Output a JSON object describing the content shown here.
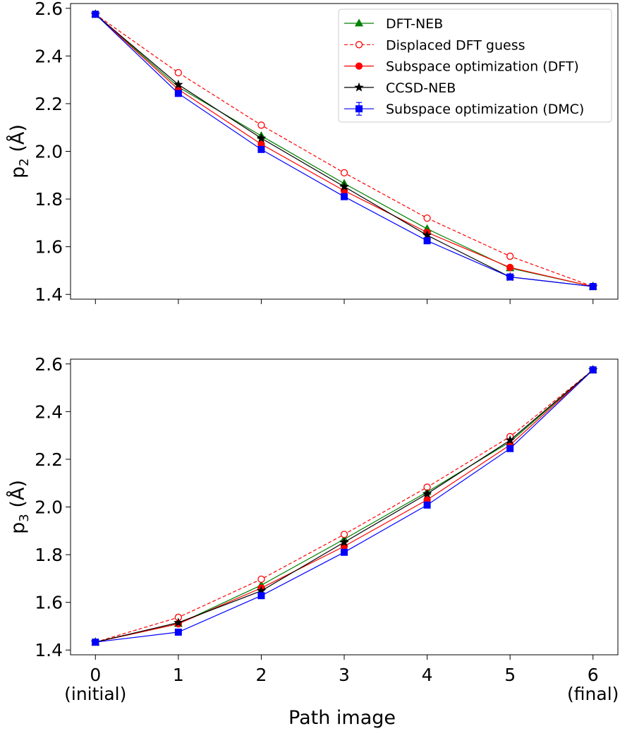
{
  "chart_data": {
    "type": "line",
    "shared_x": {
      "label": "Path image",
      "ticks": [
        0,
        1,
        2,
        3,
        4,
        5,
        6
      ],
      "tick_labels": [
        "0",
        "1",
        "2",
        "3",
        "4",
        "5",
        "6"
      ],
      "tick_sublabels": [
        "(initial)",
        "",
        "",
        "",
        "",
        "",
        "(final)"
      ],
      "xlim": [
        -0.3,
        6.3
      ]
    },
    "legend": {
      "placement": "top-right of upper panel",
      "entries": [
        "DFT-NEB",
        "Displaced DFT guess",
        "Subspace optimization (DFT)",
        "CCSD-NEB",
        "Subspace optimization (DMC)"
      ]
    },
    "panels": [
      {
        "ylabel": "p",
        "ylabel_sub": "2",
        "ylabel_unit": " (Å)",
        "ylim": [
          1.38,
          2.62
        ],
        "yticks": [
          1.4,
          1.6,
          1.8,
          2.0,
          2.2,
          2.4,
          2.6
        ],
        "ytick_labels": [
          "1.4",
          "1.6",
          "1.8",
          "2.0",
          "2.2",
          "2.4",
          "2.6"
        ],
        "series": [
          {
            "name": "DFT-NEB",
            "color": "#008000",
            "marker": "triangle",
            "dashed": false,
            "filled": true,
            "x": [
              0,
              1,
              2,
              3,
              4,
              5,
              6
            ],
            "y": [
              2.575,
              2.27,
              2.065,
              1.865,
              1.675,
              1.51,
              1.433
            ]
          },
          {
            "name": "Displaced DFT guess",
            "color": "#ff0000",
            "marker": "circle",
            "dashed": true,
            "filled": false,
            "x": [
              0,
              1,
              2,
              3,
              4,
              5,
              6
            ],
            "y": [
              2.575,
              2.33,
              2.11,
              1.91,
              1.72,
              1.56,
              1.433
            ]
          },
          {
            "name": "Subspace optimization (DFT)",
            "color": "#ff0000",
            "marker": "circle",
            "dashed": false,
            "filled": true,
            "x": [
              0,
              1,
              2,
              3,
              4,
              5,
              6
            ],
            "y": [
              2.575,
              2.26,
              2.03,
              1.835,
              1.66,
              1.513,
              1.433
            ]
          },
          {
            "name": "CCSD-NEB",
            "color": "#000000",
            "marker": "star",
            "dashed": false,
            "filled": true,
            "x": [
              0,
              1,
              2,
              3,
              4,
              5,
              6
            ],
            "y": [
              2.575,
              2.28,
              2.055,
              1.852,
              1.648,
              1.473,
              1.433
            ]
          },
          {
            "name": "Subspace optimization (DMC)",
            "color": "#0000ff",
            "marker": "square",
            "dashed": false,
            "filled": true,
            "errorbars": true,
            "x": [
              0,
              1,
              2,
              3,
              4,
              5,
              6
            ],
            "y": [
              2.575,
              2.243,
              2.008,
              1.81,
              1.625,
              1.473,
              1.433
            ]
          }
        ]
      },
      {
        "ylabel": "p",
        "ylabel_sub": "3",
        "ylabel_unit": " (Å)",
        "ylim": [
          1.38,
          2.62
        ],
        "yticks": [
          1.4,
          1.6,
          1.8,
          2.0,
          2.2,
          2.4,
          2.6
        ],
        "ytick_labels": [
          "1.4",
          "1.6",
          "1.8",
          "2.0",
          "2.2",
          "2.4",
          "2.6"
        ],
        "series": [
          {
            "name": "DFT-NEB",
            "color": "#008000",
            "marker": "triangle",
            "dashed": false,
            "filled": true,
            "x": [
              0,
              1,
              2,
              3,
              4,
              5,
              6
            ],
            "y": [
              1.433,
              1.51,
              1.672,
              1.865,
              2.063,
              2.273,
              2.575
            ]
          },
          {
            "name": "Displaced DFT guess",
            "color": "#ff0000",
            "marker": "circle",
            "dashed": true,
            "filled": false,
            "x": [
              0,
              1,
              2,
              3,
              4,
              5,
              6
            ],
            "y": [
              1.433,
              1.537,
              1.697,
              1.885,
              2.083,
              2.295,
              2.575
            ]
          },
          {
            "name": "Subspace optimization (DFT)",
            "color": "#ff0000",
            "marker": "circle",
            "dashed": false,
            "filled": true,
            "x": [
              0,
              1,
              2,
              3,
              4,
              5,
              6
            ],
            "y": [
              1.433,
              1.51,
              1.66,
              1.835,
              2.03,
              2.26,
              2.575
            ]
          },
          {
            "name": "CCSD-NEB",
            "color": "#000000",
            "marker": "star",
            "dashed": false,
            "filled": true,
            "x": [
              0,
              1,
              2,
              3,
              4,
              5,
              6
            ],
            "y": [
              1.433,
              1.515,
              1.648,
              1.852,
              2.055,
              2.28,
              2.575
            ]
          },
          {
            "name": "Subspace optimization (DMC)",
            "color": "#0000ff",
            "marker": "square",
            "dashed": false,
            "filled": true,
            "errorbars": true,
            "x": [
              0,
              1,
              2,
              3,
              4,
              5,
              6
            ],
            "y": [
              1.433,
              1.475,
              1.628,
              1.81,
              2.008,
              2.245,
              2.575
            ]
          }
        ]
      }
    ]
  }
}
